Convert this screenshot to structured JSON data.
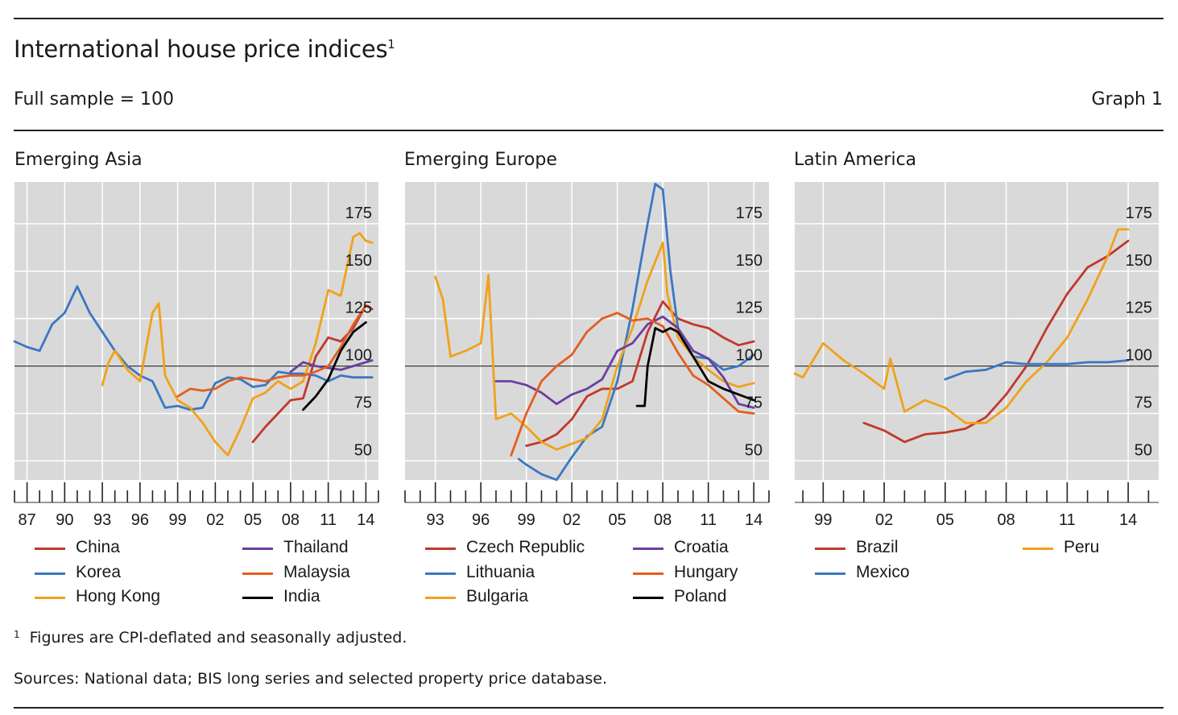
{
  "header": {
    "title": "International house price indices",
    "title_note": "1",
    "subtitle": "Full sample = 100",
    "graph_label": "Graph 1"
  },
  "footer": {
    "footnote_mark": "1",
    "footnote": "Figures are CPI-deflated and seasonally adjusted.",
    "sources": "Sources: National data; BIS long series and selected property price database."
  },
  "colors": {
    "panel_bg": "#d9d9d9",
    "grid": "#ffffff",
    "baseline": "#333333",
    "red": "#c0392b",
    "blue": "#3a78c2",
    "orange": "#f0a21a",
    "purple": "#6b3fa0",
    "dark_orange": "#e45d1f",
    "black": "#000000"
  },
  "chart_data": [
    {
      "type": "line",
      "title": "Emerging Asia",
      "xlim": [
        1986,
        2015
      ],
      "ylim": [
        40,
        197
      ],
      "yticks": [
        50,
        75,
        100,
        125,
        150,
        175
      ],
      "xticks": [
        1987,
        1990,
        1993,
        1996,
        1999,
        2002,
        2005,
        2008,
        2011,
        2014
      ],
      "xtick_labels": [
        "87",
        "90",
        "93",
        "96",
        "99",
        "02",
        "05",
        "08",
        "11",
        "14"
      ],
      "baseline": 100,
      "series": [
        {
          "name": "China",
          "color": "red",
          "x": [
            2005,
            2006,
            2007,
            2008,
            2009,
            2010,
            2011,
            2012,
            2013,
            2014,
            2014.5
          ],
          "y": [
            60,
            68,
            75,
            82,
            83,
            105,
            115,
            113,
            120,
            132,
            130
          ]
        },
        {
          "name": "Korea",
          "color": "blue",
          "x": [
            1986,
            1987,
            1988,
            1989,
            1990,
            1991,
            1992,
            1993,
            1994,
            1995,
            1996,
            1997,
            1998,
            1999,
            2000,
            2001,
            2002,
            2003,
            2004,
            2005,
            2006,
            2007,
            2008,
            2009,
            2010,
            2011,
            2012,
            2013,
            2014,
            2014.5
          ],
          "y": [
            113,
            110,
            108,
            122,
            128,
            142,
            128,
            118,
            108,
            100,
            95,
            92,
            78,
            79,
            77,
            78,
            91,
            94,
            93,
            89,
            90,
            97,
            96,
            96,
            95,
            92,
            95,
            94,
            94,
            94
          ]
        },
        {
          "name": "Hong Kong",
          "color": "orange",
          "x": [
            1993,
            1993.5,
            1994,
            1995,
            1996,
            1997,
            1997.5,
            1998,
            1999,
            2000,
            2001,
            2002,
            2003,
            2004,
            2005,
            2006,
            2007,
            2008,
            2009,
            2010,
            2011,
            2012,
            2013,
            2013.5,
            2014,
            2014.5
          ],
          "y": [
            90,
            102,
            108,
            98,
            92,
            128,
            133,
            95,
            82,
            78,
            70,
            60,
            53,
            67,
            83,
            86,
            92,
            88,
            92,
            112,
            140,
            137,
            168,
            170,
            166,
            165
          ]
        },
        {
          "name": "Thailand",
          "color": "purple",
          "x": [
            2008,
            2009,
            2010,
            2011,
            2012,
            2013,
            2014,
            2014.5
          ],
          "y": [
            97,
            102,
            100,
            99,
            98,
            100,
            102,
            103
          ]
        },
        {
          "name": "Malaysia",
          "color": "dark_orange",
          "x": [
            1999,
            2000,
            2001,
            2002,
            2003,
            2004,
            2005,
            2006,
            2007,
            2008,
            2009,
            2010,
            2011,
            2012,
            2013,
            2014
          ],
          "y": [
            84,
            88,
            87,
            88,
            92,
            94,
            93,
            92,
            94,
            95,
            95,
            97,
            100,
            110,
            122,
            132
          ]
        },
        {
          "name": "India",
          "color": "black",
          "x": [
            2009,
            2010,
            2011,
            2012,
            2013,
            2014
          ],
          "y": [
            77,
            84,
            93,
            108,
            118,
            123
          ]
        }
      ]
    },
    {
      "type": "line",
      "title": "Emerging Europe",
      "xlim": [
        1991,
        2015
      ],
      "ylim": [
        40,
        197
      ],
      "yticks": [
        50,
        75,
        100,
        125,
        150,
        175
      ],
      "xticks": [
        1993,
        1996,
        1999,
        2002,
        2005,
        2008,
        2011,
        2014
      ],
      "xtick_labels": [
        "93",
        "96",
        "99",
        "02",
        "05",
        "08",
        "11",
        "14"
      ],
      "baseline": 100,
      "series": [
        {
          "name": "Czech Republic",
          "color": "red",
          "x": [
            1999,
            2000,
            2001,
            2002,
            2003,
            2004,
            2005,
            2006,
            2007,
            2008,
            2009,
            2010,
            2011,
            2012,
            2013,
            2014
          ],
          "y": [
            58,
            60,
            64,
            72,
            84,
            88,
            88,
            92,
            118,
            134,
            125,
            122,
            120,
            115,
            111,
            113
          ]
        },
        {
          "name": "Lithuania",
          "color": "blue",
          "x": [
            1998.5,
            1999,
            2000,
            2001,
            2002,
            2003,
            2004,
            2005,
            2006,
            2007,
            2007.5,
            2008,
            2008.5,
            2009,
            2010,
            2011,
            2012,
            2013,
            2014
          ],
          "y": [
            51,
            48,
            43,
            40,
            52,
            63,
            68,
            92,
            130,
            175,
            196,
            193,
            150,
            120,
            105,
            104,
            98,
            100,
            106
          ]
        },
        {
          "name": "Bulgaria",
          "color": "orange",
          "x": [
            1993,
            1993.5,
            1994,
            1995,
            1996,
            1996.5,
            1997,
            1998,
            1999,
            2000,
            2001,
            2002,
            2003,
            2004,
            2005,
            2006,
            2007,
            2008,
            2008.3,
            2009,
            2010,
            2011,
            2012,
            2013,
            2014
          ],
          "y": [
            147,
            135,
            105,
            108,
            112,
            148,
            72,
            75,
            68,
            60,
            56,
            59,
            62,
            72,
            100,
            120,
            145,
            165,
            138,
            115,
            105,
            98,
            92,
            89,
            91
          ]
        },
        {
          "name": "Croatia",
          "color": "purple",
          "x": [
            1997,
            1998,
            1999,
            2000,
            2001,
            2002,
            2003,
            2004,
            2005,
            2006,
            2007,
            2008,
            2009,
            2010,
            2011,
            2012,
            2013,
            2014
          ],
          "y": [
            92,
            92,
            90,
            86,
            80,
            85,
            88,
            93,
            108,
            112,
            122,
            126,
            120,
            108,
            104,
            94,
            80,
            78
          ]
        },
        {
          "name": "Hungary",
          "color": "dark_orange",
          "x": [
            1998,
            1999,
            2000,
            2001,
            2002,
            2003,
            2004,
            2005,
            2006,
            2007,
            2008,
            2009,
            2010,
            2011,
            2012,
            2013,
            2014
          ],
          "y": [
            53,
            75,
            92,
            100,
            106,
            118,
            125,
            128,
            124,
            125,
            121,
            107,
            95,
            90,
            83,
            76,
            75
          ]
        },
        {
          "name": "Poland",
          "color": "black",
          "x": [
            2006.3,
            2006.8,
            2007,
            2007.5,
            2008,
            2008.5,
            2009,
            2010,
            2011,
            2012,
            2013,
            2014
          ],
          "y": [
            79,
            79,
            100,
            120,
            118,
            120,
            118,
            105,
            92,
            88,
            85,
            82
          ]
        }
      ]
    },
    {
      "type": "line",
      "title": "Latin America",
      "xlim": [
        1997.6,
        2015.5
      ],
      "ylim": [
        40,
        197
      ],
      "yticks": [
        50,
        75,
        100,
        125,
        150,
        175
      ],
      "xticks": [
        1999,
        2002,
        2005,
        2008,
        2011,
        2014
      ],
      "xtick_labels": [
        "99",
        "02",
        "05",
        "08",
        "11",
        "14"
      ],
      "baseline": 100,
      "series": [
        {
          "name": "Brazil",
          "color": "red",
          "x": [
            2001,
            2002,
            2003,
            2004,
            2005,
            2006,
            2007,
            2008,
            2009,
            2010,
            2011,
            2012,
            2013,
            2014
          ],
          "y": [
            70,
            66,
            60,
            64,
            65,
            67,
            73,
            85,
            100,
            120,
            138,
            152,
            158,
            166
          ]
        },
        {
          "name": "Peru",
          "color": "orange",
          "x": [
            1997.6,
            1998,
            1999,
            2000,
            2001,
            2002,
            2002.3,
            2003,
            2004,
            2005,
            2006,
            2007,
            2008,
            2009,
            2010,
            2011,
            2012,
            2013,
            2013.5,
            2014
          ],
          "y": [
            96,
            94,
            112,
            103,
            96,
            88,
            104,
            76,
            82,
            78,
            70,
            70,
            78,
            92,
            102,
            115,
            135,
            158,
            172,
            172
          ]
        },
        {
          "name": "Mexico",
          "color": "blue",
          "x": [
            2005,
            2006,
            2007,
            2008,
            2009,
            2010,
            2011,
            2012,
            2013,
            2014
          ],
          "y": [
            93,
            97,
            98,
            102,
            101,
            101,
            101,
            102,
            102,
            103
          ]
        }
      ]
    }
  ],
  "legends": [
    [
      {
        "label": "China",
        "color": "red"
      },
      {
        "label": "Thailand",
        "color": "purple"
      },
      {
        "label": "Korea",
        "color": "blue"
      },
      {
        "label": "Malaysia",
        "color": "dark_orange"
      },
      {
        "label": "Hong Kong",
        "color": "orange"
      },
      {
        "label": "India",
        "color": "black"
      }
    ],
    [
      {
        "label": "Czech Republic",
        "color": "red"
      },
      {
        "label": "Croatia",
        "color": "purple"
      },
      {
        "label": "Lithuania",
        "color": "blue"
      },
      {
        "label": "Hungary",
        "color": "dark_orange"
      },
      {
        "label": "Bulgaria",
        "color": "orange"
      },
      {
        "label": "Poland",
        "color": "black"
      }
    ],
    [
      {
        "label": "Brazil",
        "color": "red"
      },
      {
        "label": "Peru",
        "color": "orange"
      },
      {
        "label": "Mexico",
        "color": "blue"
      }
    ]
  ]
}
